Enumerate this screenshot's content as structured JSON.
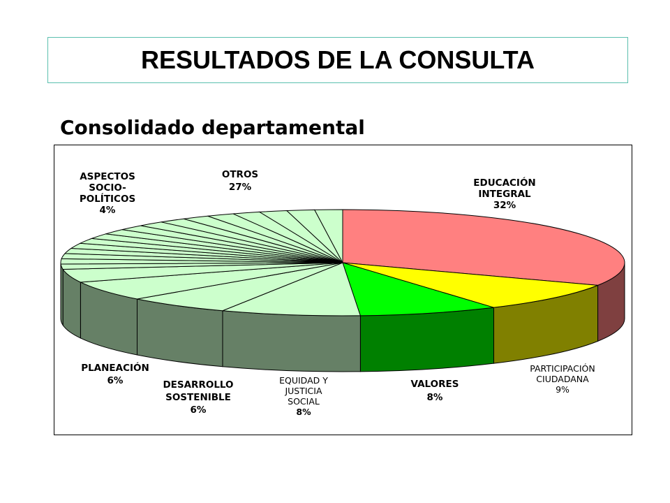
{
  "slide": {
    "title": "RESULTADOS DE LA CONSULTA",
    "subtitle": "Consolidado departamental"
  },
  "chart_data": {
    "type": "pie",
    "variant": "3d",
    "legend": "none",
    "slices": [
      {
        "label": "EDUCACIÓN INTEGRAL",
        "value": 32,
        "value_label": "32%",
        "color": "#ff8080",
        "side_color": "#7f4040"
      },
      {
        "label": "PARTICIPACIÓN CIUDADANA",
        "value": 9,
        "value_label": "9%",
        "color": "#ffff00",
        "side_color": "#808000"
      },
      {
        "label": "VALORES",
        "value": 8,
        "value_label": "8%",
        "color": "#00ff00",
        "side_color": "#008000"
      },
      {
        "label": "EQUIDAD Y JUSTICIA SOCIAL",
        "value": 8,
        "value_label": "8%",
        "color": "#ccffcc",
        "side_color": "#668066"
      },
      {
        "label": "DESARROLLO SOSTENIBLE",
        "value": 6,
        "value_label": "6%",
        "color": "#ccffcc",
        "side_color": "#668066"
      },
      {
        "label": "PLANEACIÓN",
        "value": 6,
        "value_label": "6%",
        "color": "#ccffcc",
        "side_color": "#668066"
      },
      {
        "label": "ASPECTOS SOCIO-POLÍTICOS",
        "value": 4,
        "value_label": "4%",
        "color": "#ccffcc",
        "side_color": "#668066"
      },
      {
        "label": "OTROS",
        "value": 27,
        "value_label": "27%",
        "color": "#ccffcc",
        "side_color": "#668066"
      }
    ],
    "otros_subslices": 17,
    "label_texts": {
      "educacion": [
        "EDUCACIÓN",
        "INTEGRAL",
        "32%"
      ],
      "participacion": [
        "PARTICIPACIÓN",
        "CIUDADANA",
        "9%"
      ],
      "valores": [
        "VALORES",
        "8%"
      ],
      "equidad": [
        "EQUIDAD Y",
        "JUSTICIA",
        "SOCIAL",
        "8%"
      ],
      "desarrollo": [
        "DESARROLLO",
        "SOSTENIBLE",
        "6%"
      ],
      "planeacion": [
        "PLANEACIÓN",
        "6%"
      ],
      "aspectos": [
        "ASPECTOS",
        "SOCIO-",
        "POLÍTICOS",
        "4%"
      ],
      "otros": [
        "OTROS",
        "27%"
      ]
    }
  }
}
